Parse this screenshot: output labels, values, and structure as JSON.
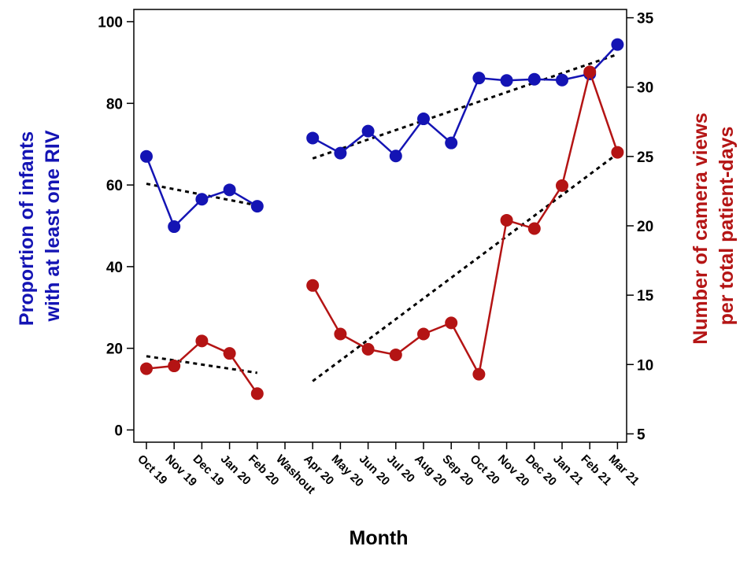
{
  "chart_data": {
    "type": "line",
    "xlabel": "Month",
    "categories": [
      "Oct 19",
      "Nov 19",
      "Dec 19",
      "Jan 20",
      "Feb 20",
      "Washout",
      "Apr 20",
      "May 20",
      "Jun 20",
      "Jul 20",
      "Aug 20",
      "Sep 20",
      "Oct 20",
      "Nov 20",
      "Dec 20",
      "Jan 21",
      "Feb 21",
      "Mar 21"
    ],
    "y_left": {
      "label_lines": [
        "Proportion of infants",
        "with at least one RIV"
      ],
      "ylim": [
        -3,
        103
      ],
      "ticks": [
        0,
        20,
        40,
        60,
        80,
        100
      ],
      "color": "#1414b4"
    },
    "y_right": {
      "label_lines": [
        "Number of camera views",
        "per total patient-days"
      ],
      "ylim": [
        4.4,
        35.6
      ],
      "ticks": [
        5,
        10,
        15,
        20,
        25,
        30,
        35
      ],
      "color": "#b41414"
    },
    "series": [
      {
        "axis": "left",
        "color": "#1414b4",
        "values": [
          67,
          49.8,
          56.5,
          58.8,
          54.8,
          null,
          71.5,
          67.8,
          73.2,
          67.1,
          76.2,
          70.3,
          86.2,
          85.6,
          85.9,
          85.7,
          87.2,
          94.4
        ]
      },
      {
        "axis": "right",
        "color": "#b41414",
        "values": [
          9.7,
          9.9,
          11.7,
          10.8,
          7.9,
          null,
          15.7,
          12.2,
          11.1,
          10.7,
          12.2,
          13.0,
          9.3,
          20.4,
          19.8,
          22.9,
          31.1,
          25.3
        ]
      }
    ],
    "trendlines": [
      {
        "axis": "left",
        "from": {
          "x": "Oct 19",
          "y": 60.3
        },
        "to": {
          "x": "Feb 20",
          "y": 55
        }
      },
      {
        "axis": "left",
        "from": {
          "x": "Apr 20",
          "y": 66.5
        },
        "to": {
          "x": "Mar 21",
          "y": 92
        }
      },
      {
        "axis": "right",
        "from": {
          "x": "Oct 19",
          "y": 10.6
        },
        "to": {
          "x": "Feb 20",
          "y": 9.4
        }
      },
      {
        "axis": "right",
        "from": {
          "x": "Apr 20",
          "y": 8.8
        },
        "to": {
          "x": "Mar 21",
          "y": 25.2
        }
      }
    ]
  }
}
